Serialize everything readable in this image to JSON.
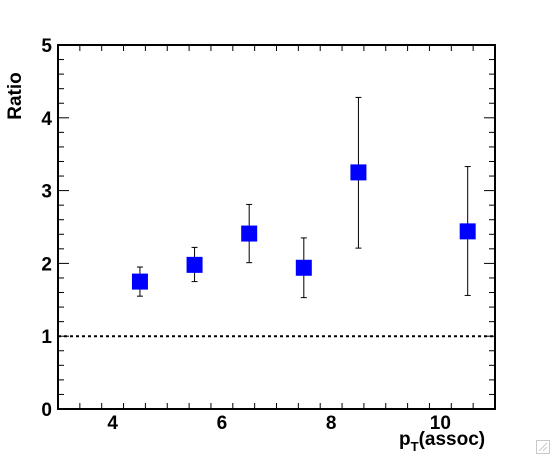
{
  "chart_data": {
    "type": "scatter",
    "title": "",
    "xlabel_main": "p",
    "xlabel_sub": "T",
    "xlabel_tail": "(assoc)",
    "ylabel": "Ratio",
    "xlim": [
      3,
      11
    ],
    "ylim": [
      0,
      5
    ],
    "x_major_ticks": [
      4,
      6,
      8,
      10
    ],
    "y_major_ticks": [
      0,
      1,
      2,
      3,
      4,
      5
    ],
    "x_tick_labels": [
      "4",
      "6",
      "8",
      "10"
    ],
    "y_tick_labels": [
      "0",
      "1",
      "2",
      "3",
      "4",
      "5"
    ],
    "marker": "square",
    "marker_color": "#0000ff",
    "reference_line": {
      "y": 1,
      "style": "dotted"
    },
    "grid": false,
    "points": [
      {
        "x": 4.5,
        "y": 1.75,
        "err_low": 1.55,
        "err_high": 1.95
      },
      {
        "x": 5.5,
        "y": 1.98,
        "err_low": 1.75,
        "err_high": 2.22
      },
      {
        "x": 6.5,
        "y": 2.41,
        "err_low": 2.01,
        "err_high": 2.81
      },
      {
        "x": 7.5,
        "y": 1.94,
        "err_low": 1.53,
        "err_high": 2.35
      },
      {
        "x": 8.5,
        "y": 3.25,
        "err_low": 2.21,
        "err_high": 4.28
      },
      {
        "x": 10.5,
        "y": 2.44,
        "err_low": 1.56,
        "err_high": 3.33
      }
    ]
  }
}
